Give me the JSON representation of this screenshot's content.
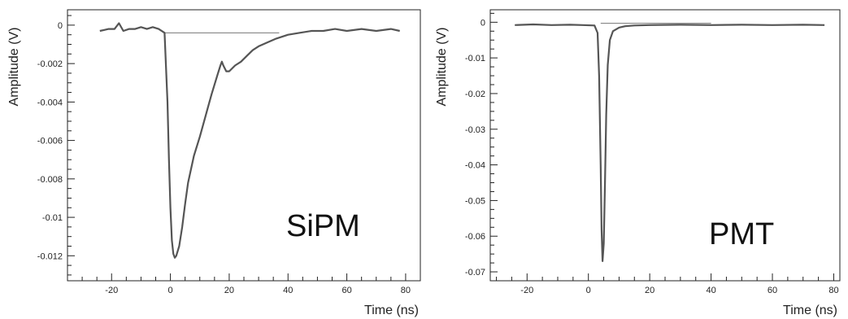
{
  "chart_data": [
    {
      "type": "line",
      "title": "",
      "xlabel": "Time (ns)",
      "ylabel": "Amplitude (V)",
      "annotation": "SiPM",
      "xlim": [
        -35,
        85
      ],
      "ylim": [
        -0.0133,
        0.0008
      ],
      "xticks": [
        -20,
        0,
        20,
        40,
        60,
        80
      ],
      "yticks": [
        0,
        -0.002,
        -0.004,
        -0.006,
        -0.008,
        -0.01,
        -0.012
      ],
      "ytick_labels": [
        "0",
        "-0.002",
        "-0.004",
        "-0.006",
        "-0.008",
        "-0.01",
        "-0.012"
      ],
      "grid": false,
      "series": [
        {
          "x": [
            -24,
            -21,
            -19,
            -17.5,
            -16,
            -14,
            -12,
            -10,
            -8,
            -6,
            -4,
            -2,
            -1,
            -0.5,
            0,
            0.5,
            1,
            1.5,
            2,
            3,
            4,
            5,
            6,
            8,
            10,
            12,
            14,
            16,
            17,
            17.5,
            18,
            19,
            20,
            22,
            24,
            26,
            28,
            30,
            33,
            36,
            40,
            44,
            48,
            52,
            56,
            60,
            65,
            70,
            75,
            78
          ],
          "y": [
            -0.0003,
            -0.0002,
            -0.0002,
            0.0001,
            -0.0003,
            -0.0002,
            -0.0002,
            -0.0001,
            -0.0002,
            -0.0001,
            -0.0002,
            -0.0004,
            -0.004,
            -0.007,
            -0.0095,
            -0.0112,
            -0.0119,
            -0.0121,
            -0.012,
            -0.0115,
            -0.0105,
            -0.0093,
            -0.0082,
            -0.0068,
            -0.0058,
            -0.0047,
            -0.0036,
            -0.0026,
            -0.0021,
            -0.0019,
            -0.0021,
            -0.0024,
            -0.0024,
            -0.0021,
            -0.0019,
            -0.0016,
            -0.0013,
            -0.0011,
            -0.0009,
            -0.0007,
            -0.0005,
            -0.0004,
            -0.0003,
            -0.0003,
            -0.0002,
            -0.0003,
            -0.0002,
            -0.0003,
            -0.0002,
            -0.0003
          ]
        }
      ],
      "baseline": {
        "x": [
          -2,
          37
        ],
        "y": [
          -0.0004,
          -0.0004
        ]
      },
      "colors": {
        "trace": "#555555",
        "baseline": "#777777",
        "axes": "#222222"
      }
    },
    {
      "type": "line",
      "title": "",
      "xlabel": "Time (ns)",
      "ylabel": "Amplitude (V)",
      "annotation": "PMT",
      "xlim": [
        -32,
        82
      ],
      "ylim": [
        -0.0725,
        0.0035
      ],
      "xticks": [
        -20,
        0,
        20,
        40,
        60,
        80
      ],
      "yticks": [
        0,
        -0.01,
        -0.02,
        -0.03,
        -0.04,
        -0.05,
        -0.06,
        -0.07
      ],
      "ytick_labels": [
        "0",
        "-0.01",
        "-0.02",
        "-0.03",
        "-0.04",
        "-0.05",
        "-0.06",
        "-0.07"
      ],
      "grid": false,
      "series": [
        {
          "x": [
            -24,
            -18,
            -12,
            -6,
            -2,
            2,
            3,
            3.5,
            4,
            4.3,
            4.6,
            5,
            5.4,
            5.8,
            6.3,
            7,
            8,
            10,
            12,
            15,
            20,
            30,
            40,
            50,
            60,
            70,
            77
          ],
          "y": [
            -0.0008,
            -0.0006,
            -0.0008,
            -0.0007,
            -0.0008,
            -0.0009,
            -0.003,
            -0.015,
            -0.04,
            -0.058,
            -0.067,
            -0.062,
            -0.045,
            -0.026,
            -0.012,
            -0.005,
            -0.0025,
            -0.0015,
            -0.0011,
            -0.0009,
            -0.0008,
            -0.0007,
            -0.0008,
            -0.0007,
            -0.0008,
            -0.0007,
            -0.0008
          ]
        }
      ],
      "baseline": {
        "x": [
          4,
          40
        ],
        "y": [
          -0.0003,
          -0.0003
        ]
      },
      "colors": {
        "trace": "#555555",
        "baseline": "#777777",
        "axes": "#222222"
      }
    }
  ]
}
